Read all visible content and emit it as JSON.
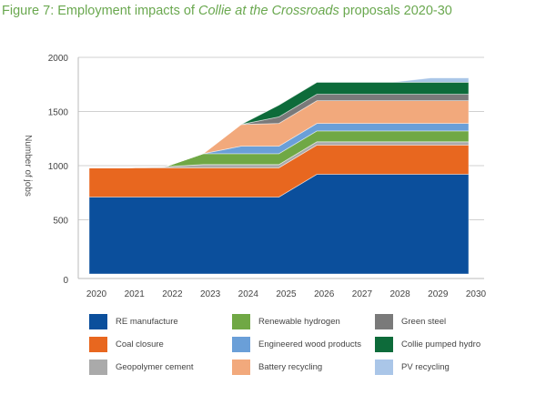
{
  "title": {
    "prefix": "Figure 7: Employment impacts of ",
    "italic": "Collie at the Crossroads",
    "suffix": " proposals 2020-30"
  },
  "chart_data": {
    "type": "area",
    "stacked": true,
    "title": "Figure 7: Employment impacts of Collie at the Crossroads proposals 2020-30",
    "xlabel": "",
    "ylabel": "Number of jobs",
    "x": [
      "2020",
      "2021",
      "2022",
      "2023",
      "2024",
      "2025",
      "2026",
      "2027",
      "2028",
      "2029",
      "2030"
    ],
    "ylim": [
      0,
      2000
    ],
    "yticks": [
      0,
      500,
      1000,
      1500,
      2000
    ],
    "grid": true,
    "legend_position": "bottom",
    "series": [
      {
        "name": "RE manufacture",
        "color": "#0b4f9c",
        "values": [
          710,
          710,
          710,
          710,
          710,
          710,
          920,
          920,
          920,
          920,
          920
        ]
      },
      {
        "name": "Coal closure",
        "color": "#e8671f",
        "values": [
          270,
          270,
          270,
          270,
          270,
          270,
          270,
          270,
          270,
          270,
          270
        ]
      },
      {
        "name": "Geopolymer cement",
        "color": "#aaaaaa",
        "values": [
          0,
          0,
          10,
          30,
          30,
          30,
          30,
          30,
          30,
          30,
          30
        ]
      },
      {
        "name": "Renewable hydrogen",
        "color": "#70a845",
        "values": [
          0,
          0,
          0,
          100,
          100,
          100,
          100,
          100,
          100,
          100,
          100
        ]
      },
      {
        "name": "Engineered wood products",
        "color": "#6a9fd8",
        "values": [
          0,
          0,
          0,
          0,
          70,
          70,
          70,
          70,
          70,
          70,
          70
        ]
      },
      {
        "name": "Battery recycling",
        "color": "#f2a97c",
        "values": [
          0,
          0,
          0,
          0,
          200,
          210,
          210,
          210,
          210,
          210,
          210
        ]
      },
      {
        "name": "Green steel",
        "color": "#7a7a7a",
        "values": [
          0,
          0,
          0,
          0,
          0,
          60,
          60,
          60,
          60,
          60,
          60
        ]
      },
      {
        "name": "Collie pumped hydro",
        "color": "#0d6b3a",
        "values": [
          0,
          0,
          0,
          0,
          0,
          110,
          110,
          110,
          110,
          110,
          110
        ]
      },
      {
        "name": "PV recycling",
        "color": "#aac6e8",
        "values": [
          0,
          0,
          0,
          0,
          0,
          0,
          0,
          0,
          0,
          40,
          40
        ]
      }
    ]
  }
}
